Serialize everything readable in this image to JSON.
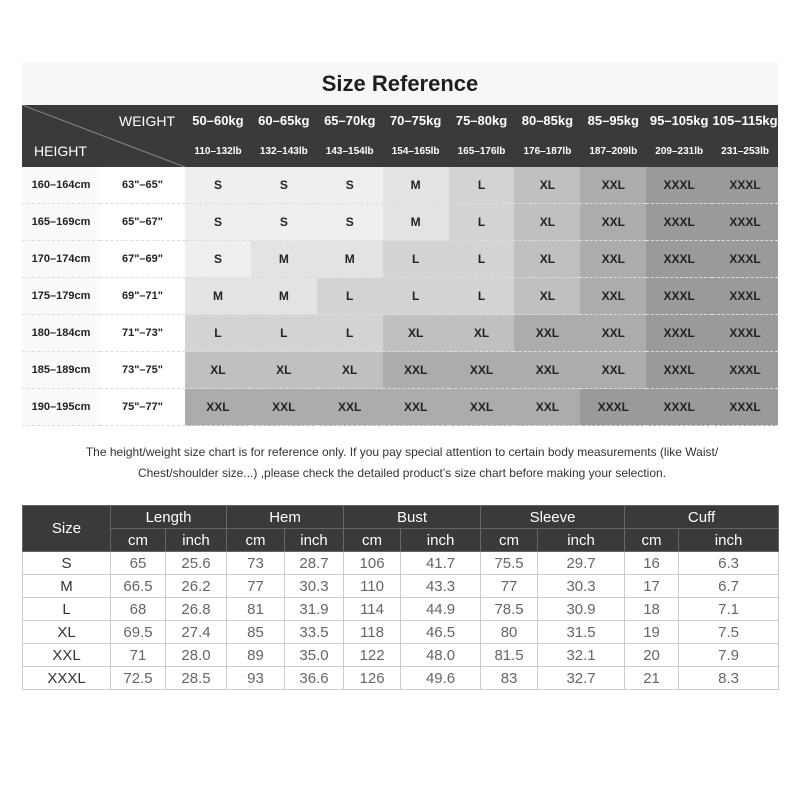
{
  "title": "Size Reference",
  "reference": {
    "weight_label": "WEIGHT",
    "height_label": "HEIGHT",
    "weights_kg": [
      "50–60kg",
      "60–65kg",
      "65–70kg",
      "70–75kg",
      "75–80kg",
      "80–85kg",
      "85–95kg",
      "95–105kg",
      "105–115kg"
    ],
    "weights_lb": [
      "110–132lb",
      "132–143lb",
      "143–154lb",
      "154–165lb",
      "165–176lb",
      "176–187lb",
      "187–209lb",
      "209–231lb",
      "231–253lb"
    ],
    "rows": [
      {
        "cm": "160–164cm",
        "inch": "63\"–65\"",
        "sizes": [
          "S",
          "S",
          "S",
          "M",
          "L",
          "XL",
          "XXL",
          "XXXL",
          "XXXL"
        ]
      },
      {
        "cm": "165–169cm",
        "inch": "65\"–67\"",
        "sizes": [
          "S",
          "S",
          "S",
          "M",
          "L",
          "XL",
          "XXL",
          "XXXL",
          "XXXL"
        ]
      },
      {
        "cm": "170–174cm",
        "inch": "67\"–69\"",
        "sizes": [
          "S",
          "M",
          "M",
          "L",
          "L",
          "XL",
          "XXL",
          "XXXL",
          "XXXL"
        ]
      },
      {
        "cm": "175–179cm",
        "inch": "69\"–71\"",
        "sizes": [
          "M",
          "M",
          "L",
          "L",
          "L",
          "XL",
          "XXL",
          "XXXL",
          "XXXL"
        ]
      },
      {
        "cm": "180–184cm",
        "inch": "71\"–73\"",
        "sizes": [
          "L",
          "L",
          "L",
          "XL",
          "XL",
          "XXL",
          "XXL",
          "XXXL",
          "XXXL"
        ]
      },
      {
        "cm": "185–189cm",
        "inch": "73\"–75\"",
        "sizes": [
          "XL",
          "XL",
          "XL",
          "XXL",
          "XXL",
          "XXL",
          "XXL",
          "XXXL",
          "XXXL"
        ]
      },
      {
        "cm": "190–195cm",
        "inch": "75\"–77\"",
        "sizes": [
          "XXL",
          "XXL",
          "XXL",
          "XXL",
          "XXL",
          "XXL",
          "XXXL",
          "XXXL",
          "XXXL"
        ]
      }
    ],
    "size_colors": {
      "S": "#efefef",
      "M": "#e3e3e3",
      "L": "#d3d3d3",
      "XL": "#c0c0c0",
      "XXL": "#acacac",
      "XXXL": "#9a9a9a"
    }
  },
  "note_line1": "The height/weight size chart is for reference only. If you pay special attention to certain body measurements  (like Waist/",
  "note_line2": "Chest/shoulder size...)  ,please check the detailed product’s size chart before making your selection.",
  "measurements": {
    "size_label": "Size",
    "groups": [
      "Length",
      "Hem",
      "Bust",
      "Sleeve",
      "Cuff"
    ],
    "units": [
      "cm",
      "inch"
    ],
    "rows": [
      {
        "size": "S",
        "values": [
          "65",
          "25.6",
          "73",
          "28.7",
          "106",
          "41.7",
          "75.5",
          "29.7",
          "16",
          "6.3"
        ]
      },
      {
        "size": "M",
        "values": [
          "66.5",
          "26.2",
          "77",
          "30.3",
          "110",
          "43.3",
          "77",
          "30.3",
          "17",
          "6.7"
        ]
      },
      {
        "size": "L",
        "values": [
          "68",
          "26.8",
          "81",
          "31.9",
          "114",
          "44.9",
          "78.5",
          "30.9",
          "18",
          "7.1"
        ]
      },
      {
        "size": "XL",
        "values": [
          "69.5",
          "27.4",
          "85",
          "33.5",
          "118",
          "46.5",
          "80",
          "31.5",
          "19",
          "7.5"
        ]
      },
      {
        "size": "XXL",
        "values": [
          "71",
          "28.0",
          "89",
          "35.0",
          "122",
          "48.0",
          "81.5",
          "32.1",
          "20",
          "7.9"
        ]
      },
      {
        "size": "XXXL",
        "values": [
          "72.5",
          "28.5",
          "93",
          "36.6",
          "126",
          "49.6",
          "83",
          "32.7",
          "21",
          "8.3"
        ]
      }
    ]
  }
}
